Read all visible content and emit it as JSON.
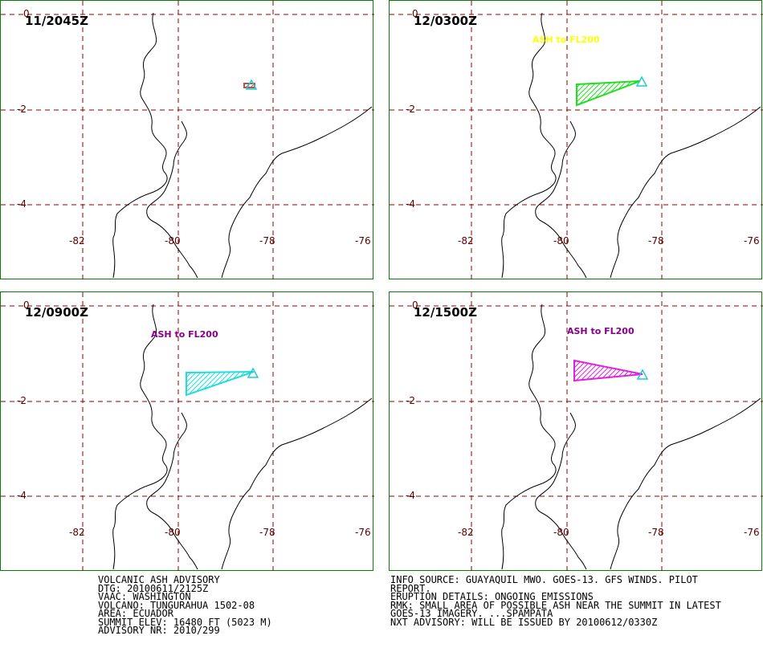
{
  "panels": [
    {
      "time": "11/2045Z",
      "ash_label": "",
      "ash_color": "#c0504d"
    },
    {
      "time": "12/0300Z",
      "ash_label": "ASH to FL200",
      "ash_color": "#22dd22",
      "label_color": "#ffff00"
    },
    {
      "time": "12/0900Z",
      "ash_label": "ASH to FL200",
      "ash_color": "#22dddd",
      "label_color": "#880088"
    },
    {
      "time": "12/1500Z",
      "ash_label": "ASH to FL200",
      "ash_color": "#dd22dd",
      "label_color": "#880088"
    }
  ],
  "axes": {
    "lat_labels": [
      "0",
      "-2",
      "-4"
    ],
    "lon_labels": [
      "-82",
      "-80",
      "-78",
      "-76"
    ]
  },
  "advisory_left": [
    "VOLCANIC ASH ADVISORY",
    "DTG: 20100611/2125Z",
    "VAAC: WASHINGTON",
    "VOLCANO: TUNGURAHUA 1502-08",
    "AREA: ECUADOR",
    "SUMMIT ELEV: 16480 FT (5023 M)",
    "ADVISORY NR: 2010/299"
  ],
  "advisory_right": [
    "INFO SOURCE: GUAYAQUIL MWO. GOES-13. GFS WINDS. PILOT",
    "REPORT.",
    "ERUPTION DETAILS: ONGOING EMISSIONS",
    "RMK: SMALL AREA OF POSSIBLE ASH NEAR THE SUMMIT IN LATEST",
    "GOES-13 IMAGERY. ...SPAMPATA",
    "NXT ADVISORY: WILL BE ISSUED BY 20100612/0330Z"
  ],
  "colors": {
    "grid": "#8b0000",
    "border": "#0a7a0a",
    "volcano": "#22cccc"
  }
}
